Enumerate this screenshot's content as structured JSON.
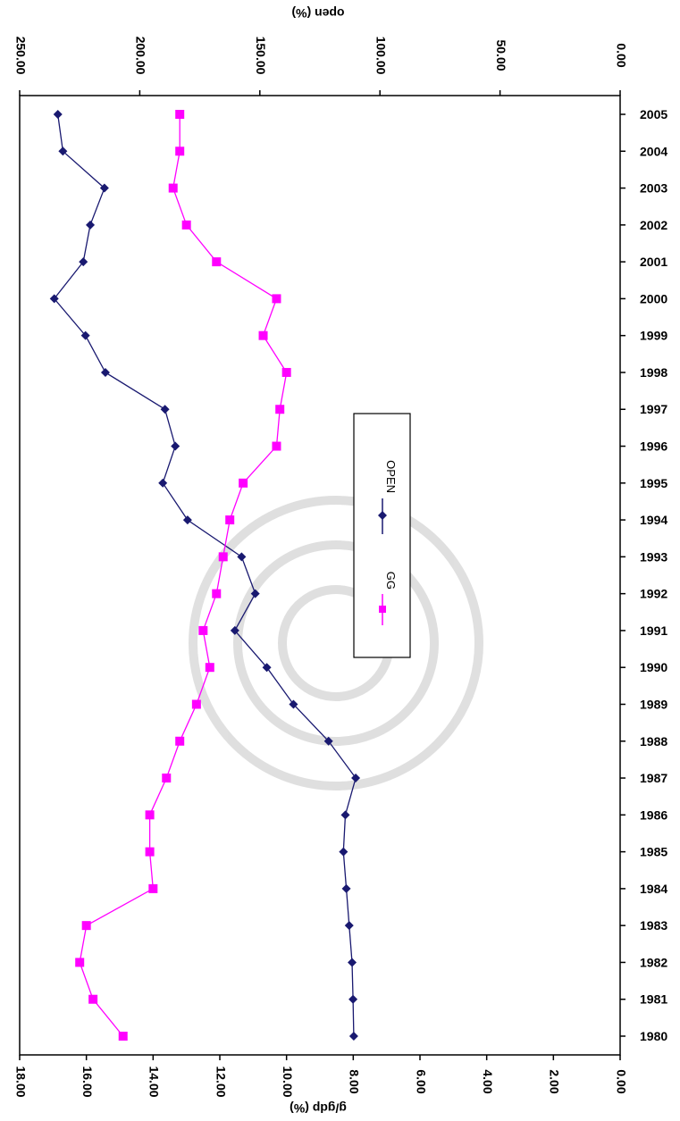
{
  "chart_data": {
    "type": "line",
    "orientation": "rotated",
    "categories": [
      "1980",
      "1981",
      "1982",
      "1983",
      "1984",
      "1985",
      "1986",
      "1987",
      "1988",
      "1989",
      "1990",
      "1991",
      "1992",
      "1993",
      "1994",
      "1995",
      "1996",
      "1997",
      "1998",
      "1999",
      "2000",
      "2001",
      "2002",
      "2003",
      "2004",
      "2005"
    ],
    "top_axis": {
      "title": "open (%)",
      "range": [
        0,
        250
      ],
      "ticks": [
        "0.00",
        "50.00",
        "100.00",
        "150.00",
        "200.00",
        "250.00"
      ]
    },
    "bottom_axis": {
      "title": "g/gdp (%)",
      "range": [
        0,
        18
      ],
      "ticks": [
        "0.00",
        "2.00",
        "4.00",
        "6.00",
        "8.00",
        "10.00",
        "12.00",
        "14.00",
        "16.00",
        "18.00"
      ]
    },
    "series": [
      {
        "name": "OPEN",
        "axis": "top",
        "color": "#191970",
        "marker": "diamond",
        "values": [
          110.9,
          111.2,
          111.6,
          112.8,
          114.0,
          115.2,
          114.4,
          110.1,
          121.4,
          136.0,
          147.1,
          160.4,
          151.9,
          157.6,
          180.1,
          190.4,
          185.2,
          189.5,
          214.3,
          222.6,
          235.6,
          223.5,
          220.6,
          214.7,
          232.0,
          234.1
        ]
      },
      {
        "name": "GG",
        "axis": "bottom",
        "color": "#ff00ff",
        "marker": "square",
        "values": [
          14.9,
          15.8,
          16.2,
          16.0,
          14.0,
          14.1,
          14.1,
          13.6,
          13.2,
          12.7,
          12.3,
          12.5,
          12.1,
          11.9,
          11.7,
          11.3,
          10.3,
          10.2,
          10.0,
          10.7,
          10.3,
          12.1,
          13.0,
          13.4,
          13.2,
          13.2
        ]
      }
    ],
    "legend": {
      "position": "center-right",
      "entries": [
        "GG",
        "OPEN"
      ]
    }
  }
}
